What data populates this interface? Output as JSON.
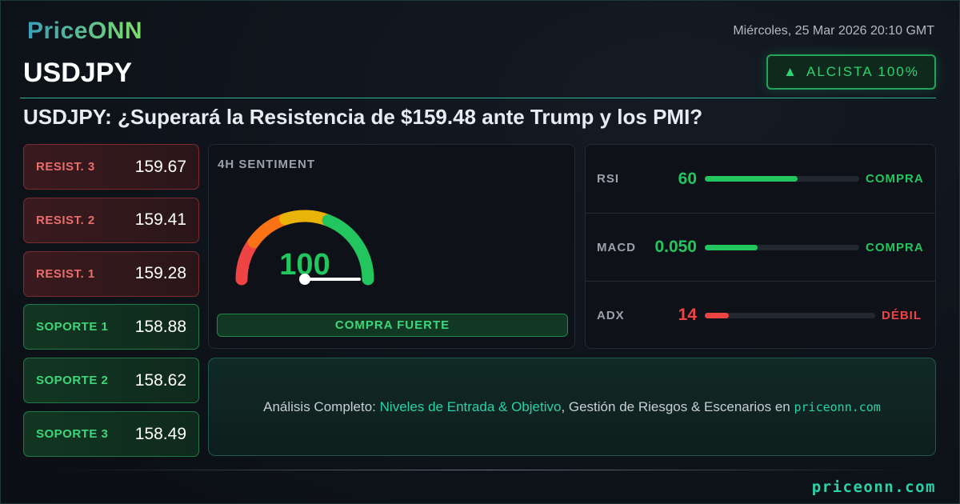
{
  "brand": {
    "logo": "PriceONN"
  },
  "header": {
    "date": "Miércoles, 25 Mar 2026 20:10 GMT",
    "symbol": "USDJPY",
    "badge": {
      "icon": "triangle-up-icon",
      "label": "ALCISTA 100%"
    }
  },
  "headline": "USDJPY: ¿Superará la Resistencia de $159.48 ante Trump y los PMI?",
  "levels": [
    {
      "label": "RESIST. 3",
      "value": "159.67",
      "type": "resistance"
    },
    {
      "label": "RESIST. 2",
      "value": "159.41",
      "type": "resistance"
    },
    {
      "label": "RESIST. 1",
      "value": "159.28",
      "type": "resistance"
    },
    {
      "label": "SOPORTE 1",
      "value": "158.88",
      "type": "support"
    },
    {
      "label": "SOPORTE 2",
      "value": "158.62",
      "type": "support"
    },
    {
      "label": "SOPORTE 3",
      "value": "158.49",
      "type": "support"
    }
  ],
  "sentiment": {
    "title": "4H SENTIMENT",
    "value": "100",
    "score": 100,
    "verdict": "COMPRA FUERTE"
  },
  "indicators": [
    {
      "name": "RSI",
      "value": "60",
      "fill_pct": 60,
      "signal": "COMPRA",
      "color": "#22c55e"
    },
    {
      "name": "MACD",
      "value": "0.050",
      "fill_pct": 34,
      "signal": "COMPRA",
      "color": "#22c55e"
    },
    {
      "name": "ADX",
      "value": "14",
      "fill_pct": 14,
      "signal": "DÉBIL",
      "color": "#ef4444"
    }
  ],
  "cta": {
    "prefix": "Análisis Completo: ",
    "highlight": "Niveles de Entrada & Objetivo",
    "middle": ", Gestión de Riesgos & Escenarios en ",
    "site": "priceonn.com"
  },
  "footer": {
    "site": "priceonn.com"
  },
  "colors": {
    "accent": "#2bd1a8",
    "bullish": "#22c55e",
    "bearish": "#ef4444"
  }
}
